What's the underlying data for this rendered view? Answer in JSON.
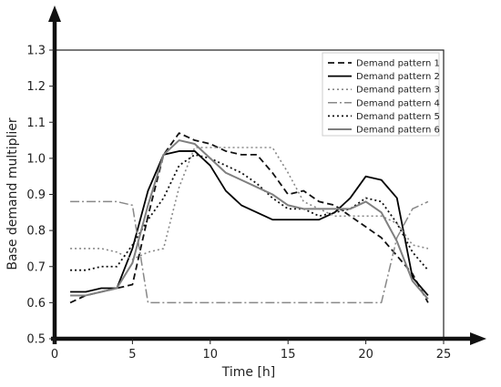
{
  "chart_data": {
    "type": "line",
    "xlabel": "Time [h]",
    "ylabel": "Base demand multiplier",
    "xlim": [
      0,
      25
    ],
    "ylim": [
      0.5,
      1.3
    ],
    "xticks": [
      "0",
      "5",
      "10",
      "15",
      "20",
      "25"
    ],
    "yticks": [
      "0.5",
      "0.6",
      "0.7",
      "0.8",
      "0.9",
      "1.0",
      "1.1",
      "1.2",
      "1.3"
    ],
    "grid": false,
    "legend_position": "top-right",
    "x": [
      1,
      2,
      3,
      4,
      5,
      6,
      7,
      8,
      9,
      10,
      11,
      12,
      13,
      14,
      15,
      16,
      17,
      18,
      19,
      20,
      21,
      22,
      23,
      24
    ],
    "series": [
      {
        "name": "Demand pattern 1",
        "color": "#111111",
        "dash": "7,4",
        "width": 1.8,
        "values": [
          0.6,
          0.62,
          0.63,
          0.64,
          0.65,
          0.84,
          1.01,
          1.07,
          1.05,
          1.04,
          1.02,
          1.01,
          1.01,
          0.96,
          0.9,
          0.91,
          0.88,
          0.87,
          0.84,
          0.81,
          0.78,
          0.73,
          0.68,
          0.6
        ]
      },
      {
        "name": "Demand pattern 2",
        "color": "#000000",
        "dash": "",
        "width": 1.8,
        "values": [
          0.63,
          0.63,
          0.64,
          0.64,
          0.75,
          0.91,
          1.01,
          1.02,
          1.02,
          0.98,
          0.91,
          0.87,
          0.85,
          0.83,
          0.83,
          0.83,
          0.83,
          0.85,
          0.89,
          0.95,
          0.94,
          0.89,
          0.67,
          0.62
        ]
      },
      {
        "name": "Demand pattern 3",
        "color": "#888888",
        "dash": "2,3",
        "width": 1.6,
        "values": [
          0.75,
          0.75,
          0.75,
          0.74,
          0.72,
          0.74,
          0.75,
          0.92,
          1.03,
          1.03,
          1.03,
          1.03,
          1.03,
          1.03,
          0.96,
          0.88,
          0.86,
          0.84,
          0.84,
          0.84,
          0.84,
          0.82,
          0.76,
          0.75
        ]
      },
      {
        "name": "Demand pattern 4",
        "color": "#888888",
        "dash": "10,3,2,3",
        "width": 1.5,
        "values": [
          0.88,
          0.88,
          0.88,
          0.88,
          0.87,
          0.6,
          0.6,
          0.6,
          0.6,
          0.6,
          0.6,
          0.6,
          0.6,
          0.6,
          0.6,
          0.6,
          0.6,
          0.6,
          0.6,
          0.6,
          0.6,
          0.78,
          0.86,
          0.88
        ]
      },
      {
        "name": "Demand pattern 5",
        "color": "#111111",
        "dash": "2,3",
        "width": 1.8,
        "values": [
          0.69,
          0.69,
          0.7,
          0.7,
          0.76,
          0.83,
          0.89,
          0.98,
          1.01,
          1.0,
          0.98,
          0.96,
          0.93,
          0.89,
          0.86,
          0.86,
          0.84,
          0.85,
          0.86,
          0.89,
          0.88,
          0.82,
          0.74,
          0.69
        ]
      },
      {
        "name": "Demand pattern 6",
        "color": "#7f7f7f",
        "dash": "",
        "width": 2.0,
        "values": [
          0.62,
          0.62,
          0.63,
          0.64,
          0.71,
          0.87,
          1.01,
          1.05,
          1.04,
          1.0,
          0.96,
          0.94,
          0.92,
          0.9,
          0.87,
          0.86,
          0.86,
          0.86,
          0.86,
          0.88,
          0.85,
          0.77,
          0.66,
          0.61
        ]
      }
    ]
  }
}
